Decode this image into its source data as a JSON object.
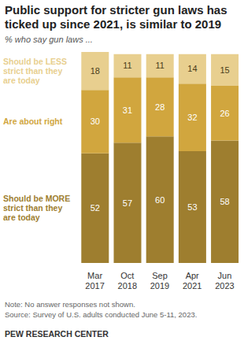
{
  "chart_data": {
    "type": "bar",
    "title": "Public support for stricter gun laws has ticked up since 2021, is similar to 2019",
    "subtitle": "% who say gun laws ...",
    "categories": [
      "Mar 2017",
      "Oct 2018",
      "Sep 2019",
      "Apr 2021",
      "Jun 2023"
    ],
    "series": [
      {
        "name": "Should be MORE strict than they are today",
        "color": "#9e7e2f",
        "values": [
          52,
          57,
          60,
          53,
          58
        ]
      },
      {
        "name": "Are about right",
        "color": "#d1a63e",
        "values": [
          30,
          31,
          28,
          32,
          26
        ]
      },
      {
        "name": "Should be LESS strict than they are today",
        "color": "#e8cf8f",
        "values": [
          18,
          11,
          11,
          14,
          15
        ]
      }
    ],
    "stacked": true,
    "data_labels": true,
    "ylim": [
      0,
      100
    ],
    "tick_labels": "x",
    "note": "Note: No answer responses not shown.",
    "source": "Source: Survey of U.S. adults conducted June 5-11, 2023.",
    "credit": "PEW RESEARCH CENTER"
  }
}
